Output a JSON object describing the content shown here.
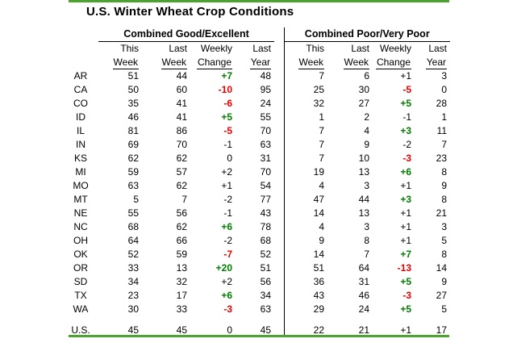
{
  "colors": {
    "rule_green": "#4ba32d",
    "green": "#007c00",
    "red": "#e80000",
    "black": "#000000"
  },
  "chart_data": {
    "type": "table",
    "title": "U.S. Winter Wheat Crop Conditions",
    "section_headers": [
      "Combined Good/Excellent",
      "Combined Poor/Very Poor"
    ],
    "column_header_line1": [
      "This",
      "Last",
      "Weekly",
      "Last"
    ],
    "column_header_line2": [
      "Week",
      "Week",
      "Change",
      "Year"
    ],
    "rows": [
      {
        "state": "AR",
        "good_excellent": {
          "this_week": "51",
          "last_week": "44",
          "weekly_change": "+7",
          "change_color": "green",
          "last_year": "48"
        },
        "poor_very_poor": {
          "this_week": "7",
          "last_week": "6",
          "weekly_change": "+1",
          "change_color": "black",
          "last_year": "3"
        }
      },
      {
        "state": "CA",
        "good_excellent": {
          "this_week": "50",
          "last_week": "60",
          "weekly_change": "-10",
          "change_color": "red",
          "last_year": "95"
        },
        "poor_very_poor": {
          "this_week": "25",
          "last_week": "30",
          "weekly_change": "-5",
          "change_color": "red",
          "last_year": "0"
        }
      },
      {
        "state": "CO",
        "good_excellent": {
          "this_week": "35",
          "last_week": "41",
          "weekly_change": "-6",
          "change_color": "red",
          "last_year": "24"
        },
        "poor_very_poor": {
          "this_week": "32",
          "last_week": "27",
          "weekly_change": "+5",
          "change_color": "green",
          "last_year": "28"
        }
      },
      {
        "state": "ID",
        "good_excellent": {
          "this_week": "46",
          "last_week": "41",
          "weekly_change": "+5",
          "change_color": "green",
          "last_year": "55"
        },
        "poor_very_poor": {
          "this_week": "1",
          "last_week": "2",
          "weekly_change": "-1",
          "change_color": "black",
          "last_year": "1"
        }
      },
      {
        "state": "IL",
        "good_excellent": {
          "this_week": "81",
          "last_week": "86",
          "weekly_change": "-5",
          "change_color": "red",
          "last_year": "70"
        },
        "poor_very_poor": {
          "this_week": "7",
          "last_week": "4",
          "weekly_change": "+3",
          "change_color": "green",
          "last_year": "11"
        }
      },
      {
        "state": "IN",
        "good_excellent": {
          "this_week": "69",
          "last_week": "70",
          "weekly_change": "-1",
          "change_color": "black",
          "last_year": "63"
        },
        "poor_very_poor": {
          "this_week": "7",
          "last_week": "9",
          "weekly_change": "-2",
          "change_color": "black",
          "last_year": "7"
        }
      },
      {
        "state": "KS",
        "good_excellent": {
          "this_week": "62",
          "last_week": "62",
          "weekly_change": "0",
          "change_color": "black",
          "last_year": "31"
        },
        "poor_very_poor": {
          "this_week": "7",
          "last_week": "10",
          "weekly_change": "-3",
          "change_color": "red",
          "last_year": "23"
        }
      },
      {
        "state": "MI",
        "good_excellent": {
          "this_week": "59",
          "last_week": "57",
          "weekly_change": "+2",
          "change_color": "black",
          "last_year": "70"
        },
        "poor_very_poor": {
          "this_week": "19",
          "last_week": "13",
          "weekly_change": "+6",
          "change_color": "green",
          "last_year": "8"
        }
      },
      {
        "state": "MO",
        "good_excellent": {
          "this_week": "63",
          "last_week": "62",
          "weekly_change": "+1",
          "change_color": "black",
          "last_year": "54"
        },
        "poor_very_poor": {
          "this_week": "4",
          "last_week": "3",
          "weekly_change": "+1",
          "change_color": "black",
          "last_year": "9"
        }
      },
      {
        "state": "MT",
        "good_excellent": {
          "this_week": "5",
          "last_week": "7",
          "weekly_change": "-2",
          "change_color": "black",
          "last_year": "77"
        },
        "poor_very_poor": {
          "this_week": "47",
          "last_week": "44",
          "weekly_change": "+3",
          "change_color": "green",
          "last_year": "8"
        }
      },
      {
        "state": "NE",
        "good_excellent": {
          "this_week": "55",
          "last_week": "56",
          "weekly_change": "-1",
          "change_color": "black",
          "last_year": "43"
        },
        "poor_very_poor": {
          "this_week": "14",
          "last_week": "13",
          "weekly_change": "+1",
          "change_color": "black",
          "last_year": "21"
        }
      },
      {
        "state": "NC",
        "good_excellent": {
          "this_week": "68",
          "last_week": "62",
          "weekly_change": "+6",
          "change_color": "green",
          "last_year": "78"
        },
        "poor_very_poor": {
          "this_week": "4",
          "last_week": "3",
          "weekly_change": "+1",
          "change_color": "black",
          "last_year": "3"
        }
      },
      {
        "state": "OH",
        "good_excellent": {
          "this_week": "64",
          "last_week": "66",
          "weekly_change": "-2",
          "change_color": "black",
          "last_year": "68"
        },
        "poor_very_poor": {
          "this_week": "9",
          "last_week": "8",
          "weekly_change": "+1",
          "change_color": "black",
          "last_year": "5"
        }
      },
      {
        "state": "OK",
        "good_excellent": {
          "this_week": "52",
          "last_week": "59",
          "weekly_change": "-7",
          "change_color": "red",
          "last_year": "52"
        },
        "poor_very_poor": {
          "this_week": "14",
          "last_week": "7",
          "weekly_change": "+7",
          "change_color": "green",
          "last_year": "8"
        }
      },
      {
        "state": "OR",
        "good_excellent": {
          "this_week": "33",
          "last_week": "13",
          "weekly_change": "+20",
          "change_color": "green",
          "last_year": "51"
        },
        "poor_very_poor": {
          "this_week": "51",
          "last_week": "64",
          "weekly_change": "-13",
          "change_color": "red",
          "last_year": "14"
        }
      },
      {
        "state": "SD",
        "good_excellent": {
          "this_week": "34",
          "last_week": "32",
          "weekly_change": "+2",
          "change_color": "black",
          "last_year": "56"
        },
        "poor_very_poor": {
          "this_week": "36",
          "last_week": "31",
          "weekly_change": "+5",
          "change_color": "green",
          "last_year": "9"
        }
      },
      {
        "state": "TX",
        "good_excellent": {
          "this_week": "23",
          "last_week": "17",
          "weekly_change": "+6",
          "change_color": "green",
          "last_year": "34"
        },
        "poor_very_poor": {
          "this_week": "43",
          "last_week": "46",
          "weekly_change": "-3",
          "change_color": "red",
          "last_year": "27"
        }
      },
      {
        "state": "WA",
        "good_excellent": {
          "this_week": "30",
          "last_week": "33",
          "weekly_change": "-3",
          "change_color": "red",
          "last_year": "63"
        },
        "poor_very_poor": {
          "this_week": "29",
          "last_week": "24",
          "weekly_change": "+5",
          "change_color": "green",
          "last_year": "5"
        }
      }
    ],
    "total_row": {
      "state": "U.S.",
      "good_excellent": {
        "this_week": "45",
        "last_week": "45",
        "weekly_change": "0",
        "change_color": "black",
        "last_year": "45"
      },
      "poor_very_poor": {
        "this_week": "22",
        "last_week": "21",
        "weekly_change": "+1",
        "change_color": "black",
        "last_year": "17"
      }
    }
  }
}
